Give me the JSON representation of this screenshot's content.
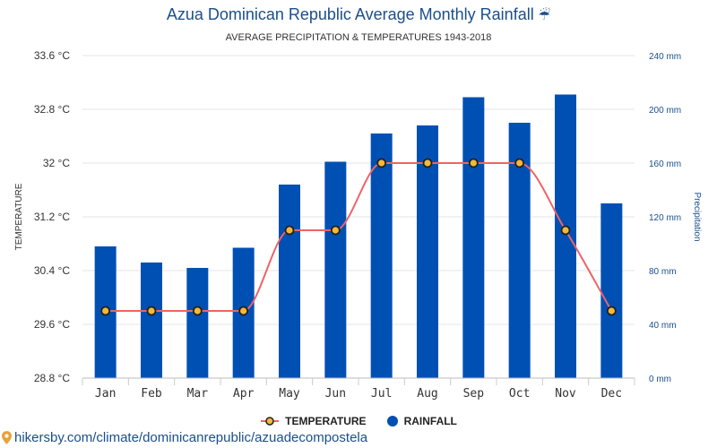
{
  "title": "Azua Dominican Republic Average Monthly Rainfall",
  "title_icon": "umbrella-rain-icon",
  "subtitle": "AVERAGE PRECIPITATION & TEMPERATURES 1943-2018",
  "footer": {
    "icon": "location-pin-icon",
    "url": "hikersby.com/climate/dominicanrepublic/azuadecompostela"
  },
  "colors": {
    "bar": "#0050b4",
    "line": "#ee6466",
    "marker_fill": "#f5b83c",
    "marker_stroke": "#222222",
    "axis_text_left": "#333333",
    "axis_text_right": "#1a4f8b"
  },
  "chart_data": {
    "type": "bar",
    "categories": [
      "Jan",
      "Feb",
      "Mar",
      "Apr",
      "May",
      "Jun",
      "Jul",
      "Aug",
      "Sep",
      "Oct",
      "Nov",
      "Dec"
    ],
    "series": [
      {
        "name": "TEMPERATURE",
        "type": "line",
        "axis": "left",
        "values": [
          29.8,
          29.8,
          29.8,
          29.8,
          31.0,
          31.0,
          32.0,
          32.0,
          32.0,
          32.0,
          31.0,
          29.8
        ]
      },
      {
        "name": "RAINFALL",
        "type": "bar",
        "axis": "right",
        "values": [
          98,
          86,
          82,
          97,
          144,
          161,
          182,
          188,
          209,
          190,
          211,
          130
        ]
      }
    ],
    "y_left": {
      "label": "TEMPERATURE",
      "range": [
        28.8,
        33.6
      ],
      "ticks": [
        "28.8 °C",
        "29.6 °C",
        "30.4 °C",
        "31.2 °C",
        "32 °C",
        "32.8 °C",
        "33.6 °C"
      ]
    },
    "y_right": {
      "label": "Precipitation",
      "range": [
        0,
        240
      ],
      "ticks": [
        "0 mm",
        "40 mm",
        "80 mm",
        "120 mm",
        "160 mm",
        "200 mm",
        "240 mm"
      ]
    },
    "grid": true,
    "legend_position": "bottom-center"
  }
}
